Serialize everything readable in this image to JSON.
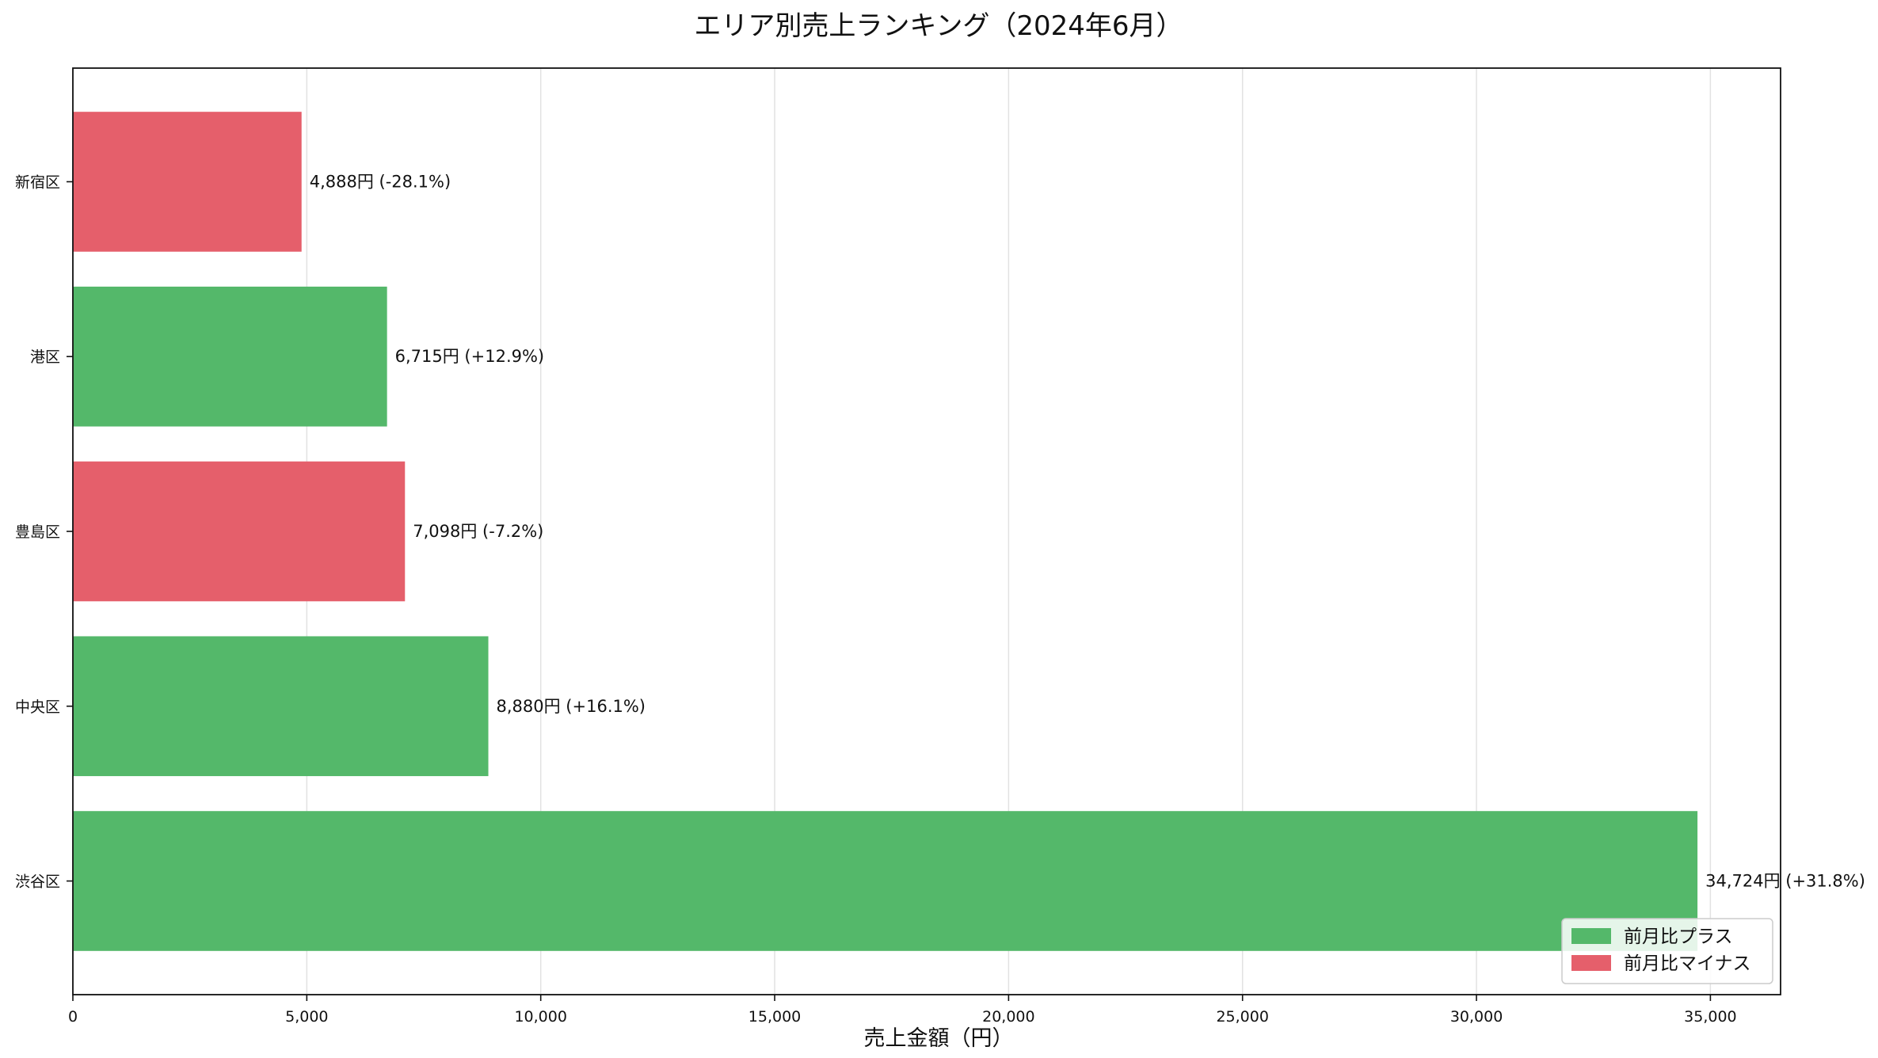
{
  "chart_data": {
    "type": "bar",
    "orientation": "horizontal",
    "title": "エリア別売上ランキング（2024年6月）",
    "xlabel": "売上金額（円）",
    "ylabel": "",
    "xlim": [
      0,
      36500
    ],
    "xticks": [
      0,
      5000,
      10000,
      15000,
      20000,
      25000,
      30000,
      35000
    ],
    "xtick_labels": [
      "0",
      "5,000",
      "10,000",
      "15,000",
      "20,000",
      "25,000",
      "30,000",
      "35,000"
    ],
    "grid": "vertical",
    "legend_position": "bottom-right",
    "legend": [
      {
        "label": "前月比プラス",
        "color": "#54b86a"
      },
      {
        "label": "前月比マイナス",
        "color": "#e55f6b"
      }
    ],
    "categories": [
      "新宿区",
      "港区",
      "豊島区",
      "中央区",
      "渋谷区"
    ],
    "values": [
      4888,
      6715,
      7098,
      8880,
      34724
    ],
    "mom_change_pct": [
      -28.1,
      12.9,
      -7.2,
      16.1,
      31.8
    ],
    "data_labels": [
      "4,888円 (-28.1%)",
      "6,715円 (+12.9%)",
      "7,098円 (-7.2%)",
      "8,880円 (+16.1%)",
      "34,724円 (+31.8%)"
    ],
    "colors": {
      "positive": "#54b86a",
      "negative": "#e55f6b"
    }
  }
}
